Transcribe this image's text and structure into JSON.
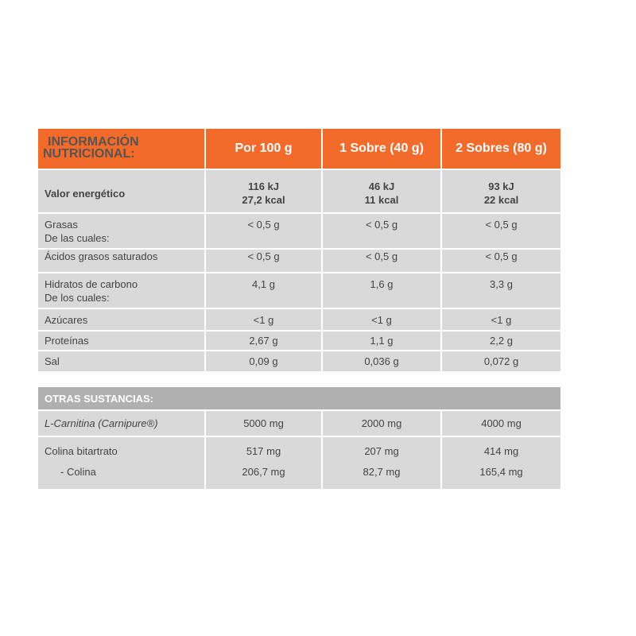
{
  "nutrition": {
    "title": [
      "INFORMACIÓN",
      "NUTRICIONAL:"
    ],
    "columns": [
      "Por 100 g",
      "1 Sobre (40 g)",
      "2 Sobres (80 g)"
    ],
    "rows": [
      {
        "label": [
          "Valor energético"
        ],
        "values": [
          [
            "116 kJ",
            "27,2 kcal"
          ],
          [
            "46 kJ",
            "11 kcal"
          ],
          [
            "93 kJ",
            "22 kcal"
          ]
        ]
      },
      {
        "label": [
          "Grasas",
          "De las cuales:"
        ],
        "values": [
          [
            "< 0,5 g"
          ],
          [
            "< 0,5 g"
          ],
          [
            "< 0,5 g"
          ]
        ]
      },
      {
        "label": [
          "Ácidos grasos saturados"
        ],
        "values": [
          [
            "< 0,5 g"
          ],
          [
            "< 0,5 g"
          ],
          [
            "< 0,5 g"
          ]
        ]
      },
      {
        "label": [
          "Hidratos de carbono",
          "De los cuales:"
        ],
        "values": [
          [
            "4,1 g"
          ],
          [
            "1,6 g"
          ],
          [
            "3,3 g"
          ]
        ]
      },
      {
        "label": [
          "Azúcares"
        ],
        "values": [
          [
            "<1 g"
          ],
          [
            "<1 g"
          ],
          [
            "<1 g"
          ]
        ]
      },
      {
        "label": [
          "Proteínas"
        ],
        "values": [
          [
            "2,67 g"
          ],
          [
            "1,1 g"
          ],
          [
            "2,2 g"
          ]
        ]
      },
      {
        "label": [
          "Sal"
        ],
        "values": [
          [
            "0,09 g"
          ],
          [
            "0,036 g"
          ],
          [
            "0,072 g"
          ]
        ]
      }
    ]
  },
  "other": {
    "title": "OTRAS SUSTANCIAS:",
    "rows": [
      {
        "label": [
          "L-Carnitina (Carnipure®)"
        ],
        "values": [
          [
            "5000 mg"
          ],
          [
            "2000 mg"
          ],
          [
            "4000 mg"
          ]
        ]
      },
      {
        "label": [
          "Colina bitartrato",
          "   - Colina"
        ],
        "values": [
          [
            "517 mg",
            "206,7 mg"
          ],
          [
            "207 mg",
            "82,7 mg"
          ],
          [
            "414 mg",
            "165,4 mg"
          ]
        ]
      }
    ]
  },
  "colors": {
    "accent": "#f26b2a",
    "cell": "#d9d9d9",
    "subheader": "#b0b0b0"
  }
}
